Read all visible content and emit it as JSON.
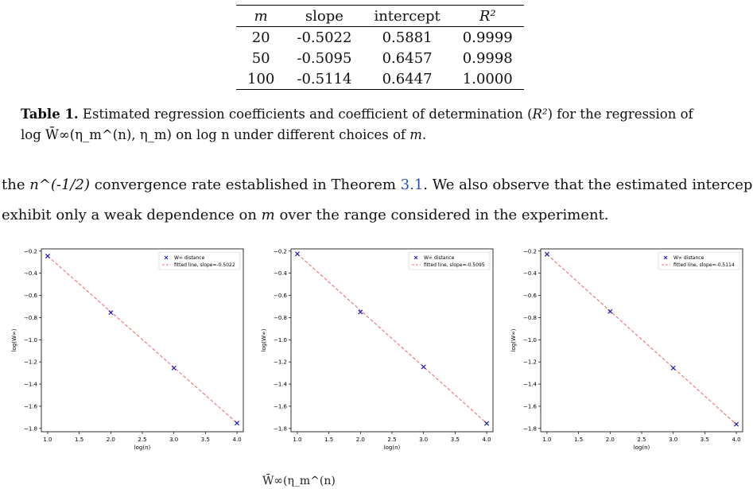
{
  "table": {
    "headers": [
      "m",
      "slope",
      "intercept",
      "R²"
    ],
    "rows": [
      [
        "20",
        "-0.5022",
        "0.5881",
        "0.9999"
      ],
      [
        "50",
        "-0.5095",
        "0.6457",
        "0.9998"
      ],
      [
        "100",
        "-0.5114",
        "0.6447",
        "1.0000"
      ]
    ]
  },
  "caption": {
    "label": "Table 1.",
    "text_1": " Estimated regression coefficients and coefficient of determination (",
    "r2": "R²",
    "text_2": ") for the regression of",
    "text_3": " on ",
    "text_4": " under different choices of ",
    "math_lhs": "log W̄∞(η_m^(n), η_m)",
    "math_rhs": "log n",
    "math_m": "m",
    "end": "."
  },
  "body": {
    "line1_a": "the ",
    "line1_math": "n^(-1/2)",
    "line1_b": " convergence rate established in Theorem ",
    "line1_ref": "3.1",
    "line1_c": ". We also observe that the estimated intercepts",
    "line2_a": "exhibit only a weak dependence on ",
    "line2_m": "m",
    "line2_b": " over the range considered in the experiment."
  },
  "bottom_fragment": "W̄∞(η_m^(n)",
  "chart_data": [
    {
      "type": "scatter",
      "x": [
        1,
        2,
        3,
        4
      ],
      "y": [
        -0.245,
        -0.755,
        -1.255,
        -1.752
      ],
      "fit": {
        "slope": -0.5022,
        "intercept": 0.2571
      },
      "xlim": [
        0.9,
        4.1
      ],
      "ylim": [
        -1.83,
        -0.18
      ],
      "xticks": [
        1.0,
        1.5,
        2.0,
        2.5,
        3.0,
        3.5,
        4.0
      ],
      "yticks": [
        -0.2,
        -0.4,
        -0.6,
        -0.8,
        -1.0,
        -1.2,
        -1.4,
        -1.6,
        -1.8
      ],
      "xlabel": "log(n)",
      "ylabel": "log(W∞)",
      "legend": [
        "W∞ distance",
        "fitted line, slope=-0.5022"
      ],
      "legend_position": "top-right",
      "colors": {
        "points": "#1a1ab8",
        "fit": "#f07070"
      }
    },
    {
      "type": "scatter",
      "x": [
        1,
        2,
        3,
        4
      ],
      "y": [
        -0.225,
        -0.75,
        -1.245,
        -1.755
      ],
      "fit": {
        "slope": -0.5095,
        "intercept": 0.2845
      },
      "xlim": [
        0.9,
        4.1
      ],
      "ylim": [
        -1.83,
        -0.18
      ],
      "xticks": [
        1.0,
        1.5,
        2.0,
        2.5,
        3.0,
        3.5,
        4.0
      ],
      "yticks": [
        -0.2,
        -0.4,
        -0.6,
        -0.8,
        -1.0,
        -1.2,
        -1.4,
        -1.6,
        -1.8
      ],
      "xlabel": "log(n)",
      "ylabel": "log(W∞)",
      "legend": [
        "W∞ distance",
        "fitted line, slope=-0.5095"
      ],
      "legend_position": "top-right",
      "colors": {
        "points": "#1a1ab8",
        "fit": "#f07070"
      }
    },
    {
      "type": "scatter",
      "x": [
        1,
        2,
        3,
        4
      ],
      "y": [
        -0.228,
        -0.745,
        -1.255,
        -1.762
      ],
      "fit": {
        "slope": -0.5114,
        "intercept": 0.2818
      },
      "xlim": [
        0.9,
        4.1
      ],
      "ylim": [
        -1.83,
        -0.18
      ],
      "xticks": [
        1.0,
        1.5,
        2.0,
        2.5,
        3.0,
        3.5,
        4.0
      ],
      "yticks": [
        -0.2,
        -0.4,
        -0.6,
        -0.8,
        -1.0,
        -1.2,
        -1.4,
        -1.6,
        -1.8
      ],
      "xlabel": "log(n)",
      "ylabel": "log(W∞)",
      "legend": [
        "W∞ distance",
        "fitted line, slope=-0.5114"
      ],
      "legend_position": "top-right",
      "colors": {
        "points": "#1a1ab8",
        "fit": "#f07070"
      }
    }
  ]
}
